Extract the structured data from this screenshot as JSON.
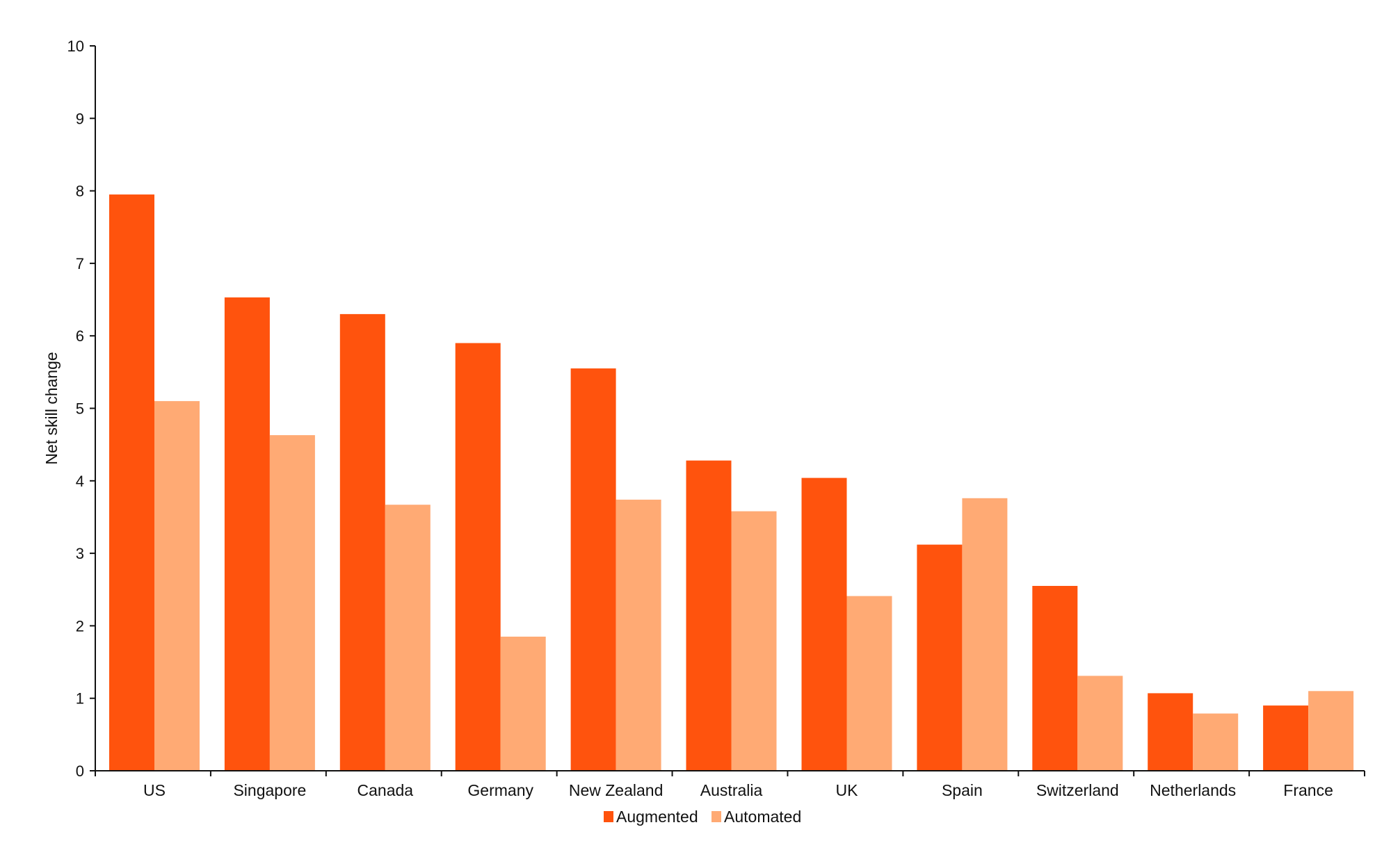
{
  "chart_data": {
    "type": "bar",
    "title": "",
    "xlabel": "",
    "ylabel": "Net skill change",
    "ylim": [
      0,
      10
    ],
    "yticks": [
      0,
      1,
      2,
      3,
      4,
      5,
      6,
      7,
      8,
      9,
      10
    ],
    "grid": false,
    "legend_position": "bottom-center",
    "categories": [
      "US",
      "Singapore",
      "Canada",
      "Germany",
      "New Zealand",
      "Australia",
      "UK",
      "Spain",
      "Switzerland",
      "Netherlands",
      "France"
    ],
    "series": [
      {
        "name": "Augmented",
        "color": "#ff530d",
        "values": [
          7.95,
          6.53,
          6.3,
          5.9,
          5.55,
          4.28,
          4.04,
          3.12,
          2.55,
          1.07,
          0.9
        ]
      },
      {
        "name": "Automated",
        "color": "#ffaa74",
        "values": [
          5.1,
          4.63,
          3.67,
          1.85,
          3.74,
          3.58,
          2.41,
          3.76,
          1.31,
          0.79,
          1.1
        ]
      }
    ]
  }
}
